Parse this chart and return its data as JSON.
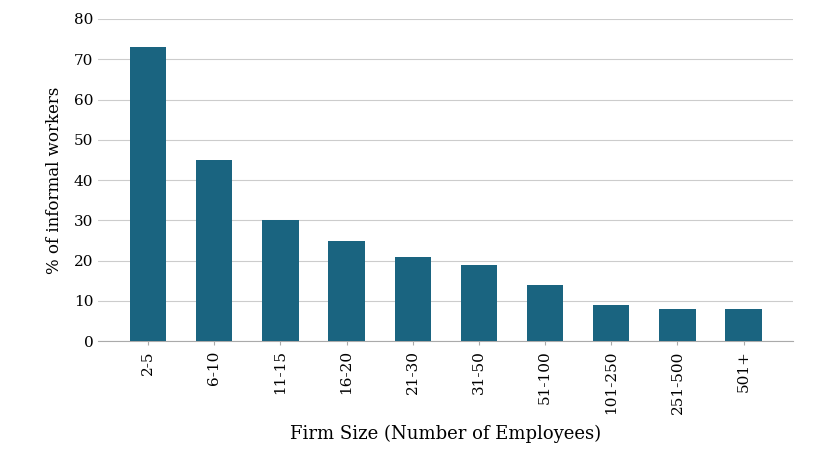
{
  "categories": [
    "2-5",
    "6-10",
    "11-15",
    "16-20",
    "21-30",
    "31-50",
    "51-100",
    "101-250",
    "251-500",
    "501+"
  ],
  "values": [
    73,
    45,
    30,
    25,
    21,
    19,
    14,
    9,
    8,
    8
  ],
  "bar_color": "#1a6480",
  "xlabel": "Firm Size (Number of Employees)",
  "ylabel": "% of informal workers",
  "ylim": [
    0,
    80
  ],
  "yticks": [
    0,
    10,
    20,
    30,
    40,
    50,
    60,
    70,
    80
  ],
  "background_color": "#ffffff",
  "grid_color": "#cccccc",
  "xlabel_fontsize": 13,
  "ylabel_fontsize": 12,
  "tick_fontsize": 11,
  "bar_width": 0.55
}
